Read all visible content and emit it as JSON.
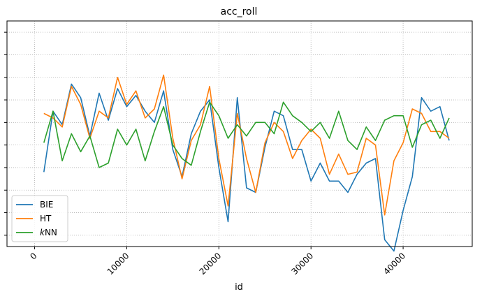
{
  "chart_data": {
    "type": "line",
    "title": "acc_roll",
    "xlabel": "id",
    "ylabel": "",
    "xlim": [
      -3000,
      47500
    ],
    "ylim": [
      0,
      10
    ],
    "xticks": [
      0,
      10000,
      20000,
      30000,
      40000
    ],
    "xtick_labels": [
      "0",
      "10000",
      "20000",
      "30000",
      "40000"
    ],
    "yticks": [
      0.5,
      1.5,
      2.5,
      3.5,
      4.5,
      5.5,
      6.5,
      7.5,
      8.5,
      9.5
    ],
    "ytick_labels_visible": false,
    "grid": true,
    "legend_position": "lower-left",
    "x": [
      1000,
      2000,
      3000,
      4000,
      5000,
      6000,
      7000,
      8000,
      9000,
      10000,
      11000,
      12000,
      13000,
      14000,
      15000,
      16000,
      17000,
      18000,
      19000,
      20000,
      21000,
      22000,
      23000,
      24000,
      25000,
      26000,
      27000,
      28000,
      29000,
      30000,
      31000,
      32000,
      33000,
      34000,
      35000,
      36000,
      37000,
      38000,
      39000,
      40000,
      41000,
      42000,
      43000,
      44000,
      45000
    ],
    "series": [
      {
        "name": "BIE",
        "color": "#1f77b4",
        "values": [
          3.3,
          6.0,
          5.4,
          7.2,
          6.6,
          4.9,
          6.8,
          5.6,
          7.0,
          6.2,
          6.7,
          6.0,
          5.5,
          6.9,
          4.3,
          3.1,
          5.0,
          6.0,
          6.5,
          3.5,
          1.1,
          6.6,
          2.6,
          2.4,
          4.4,
          6.0,
          5.8,
          4.3,
          4.3,
          2.9,
          3.7,
          2.9,
          2.9,
          2.4,
          3.2,
          3.7,
          3.9,
          0.3,
          -0.2,
          1.6,
          3.1,
          6.6,
          6.0,
          6.2,
          4.7
        ]
      },
      {
        "name": "HT",
        "color": "#ff7f0e",
        "values": [
          5.9,
          5.7,
          5.3,
          7.1,
          6.3,
          4.8,
          6.0,
          5.7,
          7.5,
          6.3,
          6.9,
          5.7,
          6.1,
          7.6,
          4.8,
          3.0,
          4.7,
          5.4,
          7.1,
          3.9,
          1.8,
          5.9,
          3.9,
          2.4,
          4.6,
          5.5,
          5.1,
          3.9,
          4.7,
          5.2,
          4.8,
          3.2,
          4.1,
          3.2,
          3.3,
          4.8,
          4.5,
          1.4,
          3.8,
          4.6,
          6.1,
          5.9,
          5.1,
          5.1,
          4.8
        ]
      },
      {
        "name": "kNN",
        "color": "#2ca02c",
        "values": [
          4.6,
          6.0,
          3.8,
          5.0,
          4.2,
          4.9,
          3.5,
          3.7,
          5.2,
          4.5,
          5.2,
          3.8,
          5.1,
          6.2,
          4.5,
          3.9,
          3.6,
          5.1,
          6.4,
          5.8,
          4.8,
          5.4,
          4.9,
          5.5,
          5.5,
          5.0,
          6.4,
          5.8,
          5.5,
          5.1,
          5.5,
          4.8,
          6.0,
          4.7,
          4.3,
          5.3,
          4.7,
          5.6,
          5.8,
          5.8,
          4.4,
          5.4,
          5.6,
          4.8,
          5.7
        ]
      }
    ]
  }
}
